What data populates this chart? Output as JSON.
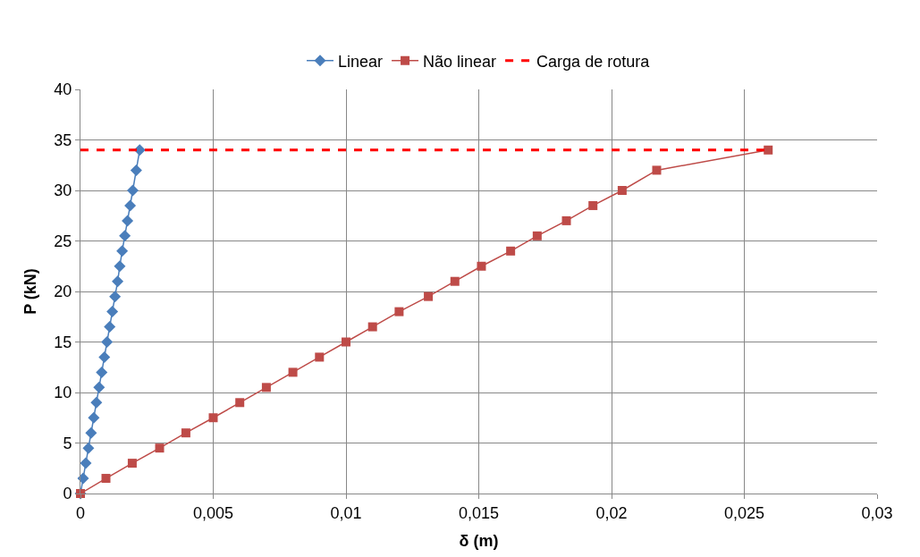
{
  "chart_data": {
    "type": "line",
    "xlabel": "δ (m)",
    "ylabel": "P (kN)",
    "xlim": [
      0,
      0.03
    ],
    "xticks": [
      {
        "value": 0,
        "label": "0"
      },
      {
        "value": 0.005,
        "label": "0,005"
      },
      {
        "value": 0.01,
        "label": "0,01"
      },
      {
        "value": 0.015,
        "label": "0,015"
      },
      {
        "value": 0.02,
        "label": "0,02"
      },
      {
        "value": 0.025,
        "label": "0,025"
      },
      {
        "value": 0.03,
        "label": "0,03"
      }
    ],
    "ylim": [
      0,
      40
    ],
    "yticks": [
      0,
      5,
      10,
      15,
      20,
      25,
      30,
      35,
      40
    ],
    "grid": true,
    "legend": "top",
    "series": [
      {
        "name": "Linear",
        "color": "#4a7ebb",
        "marker": "diamond",
        "x": [
          0,
          0.0001,
          0.0002,
          0.0003,
          0.0004,
          0.0005,
          0.0006,
          0.0007,
          0.0008,
          0.0009,
          0.001,
          0.0011,
          0.0012,
          0.0013,
          0.0014,
          0.00148,
          0.00157,
          0.00167,
          0.00177,
          0.00187,
          0.00197,
          0.0021,
          0.00223
        ],
        "values": [
          0,
          1.5,
          3,
          4.5,
          6,
          7.5,
          9,
          10.5,
          12,
          13.5,
          15,
          16.5,
          18,
          19.5,
          21,
          22.5,
          24,
          25.5,
          27,
          28.5,
          30,
          32,
          34
        ]
      },
      {
        "name": "Não linear",
        "color": "#be4b48",
        "marker": "square",
        "x": [
          0,
          0.00096,
          0.00195,
          0.00298,
          0.00397,
          0.005,
          0.006,
          0.007,
          0.008,
          0.009,
          0.01,
          0.011,
          0.012,
          0.0131,
          0.0141,
          0.0151,
          0.0162,
          0.0172,
          0.0183,
          0.0193,
          0.0204,
          0.0217,
          0.0259
        ],
        "values": [
          0,
          1.5,
          3,
          4.5,
          6,
          7.5,
          9,
          10.5,
          12,
          13.5,
          15,
          16.5,
          18,
          19.5,
          21,
          22.5,
          24,
          25.5,
          27,
          28.5,
          30,
          32,
          34
        ]
      },
      {
        "name": "Carga de rotura",
        "color": "#ff0000",
        "marker": "none",
        "line_style": "dashed",
        "x": [
          0,
          0.0259
        ],
        "values": [
          34,
          34
        ]
      }
    ]
  }
}
